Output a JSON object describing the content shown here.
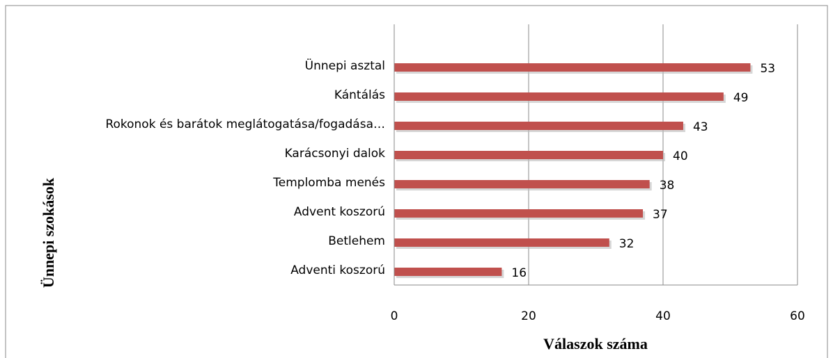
{
  "chart_data": {
    "type": "bar",
    "orientation": "horizontal",
    "xlabel": "Válaszok száma",
    "ylabel": "Ünnepi szokások",
    "categories": [
      "Ünnepi asztal",
      "Kántálás",
      "Rokonok és barátok meglátogatása/fogadása…",
      "Karácsonyi dalok",
      "Templomba menés",
      "Advent koszorú",
      "Betlehem",
      "Adventi koszorú"
    ],
    "values": [
      53,
      49,
      43,
      40,
      38,
      37,
      32,
      16
    ],
    "color": "#c0504d",
    "xlim": [
      0,
      60
    ],
    "xticks": [
      0,
      20,
      40,
      60
    ],
    "grid": true
  }
}
